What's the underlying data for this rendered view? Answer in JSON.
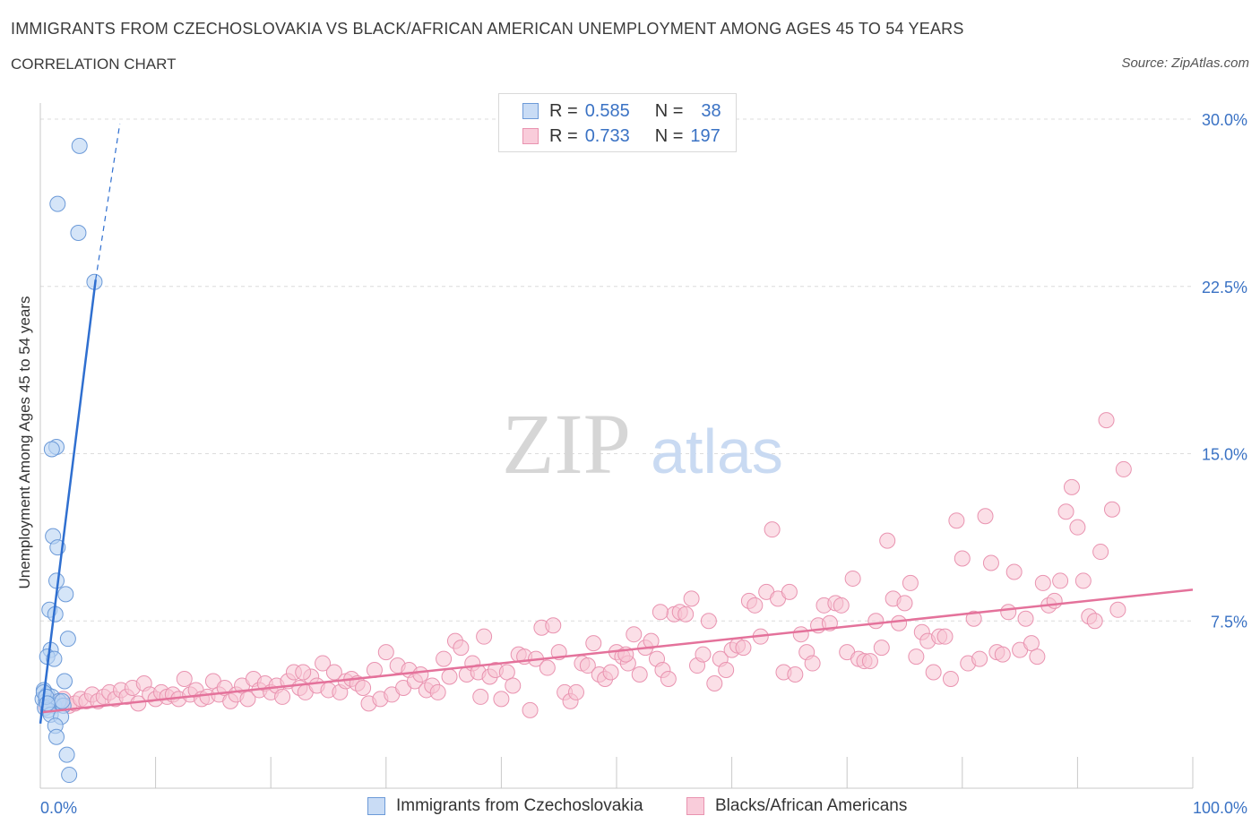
{
  "header": {
    "title": "IMMIGRANTS FROM CZECHOSLOVAKIA VS BLACK/AFRICAN AMERICAN UNEMPLOYMENT AMONG AGES 45 TO 54 YEARS",
    "subtitle": "CORRELATION CHART",
    "source": "Source: ZipAtlas.com"
  },
  "legend": {
    "rows": [
      {
        "r_label": "R =",
        "r_value": "0.585",
        "n_label": "N =",
        "n_value": "38"
      },
      {
        "r_label": "R =",
        "r_value": "0.733",
        "n_label": "N =",
        "n_value": "197"
      }
    ]
  },
  "colors": {
    "blue_fill": "#b9d3f3",
    "blue_stroke": "#6c9ad8",
    "blue_line": "#2f6fd0",
    "pink_fill": "#f7c4d4",
    "pink_stroke": "#e993b0",
    "pink_line": "#e4729b",
    "tick_label": "#3a72c4"
  },
  "chart_data": {
    "type": "scatter",
    "xlabel": "",
    "ylabel": "Unemployment Among Ages 45 to 54 years",
    "xlim": [
      0,
      100
    ],
    "ylim": [
      0,
      30
    ],
    "x_tick_labels": [
      "0.0%",
      "100.0%"
    ],
    "y_ticks": [
      7.5,
      15.0,
      22.5,
      30.0
    ],
    "y_tick_labels": [
      "7.5%",
      "15.0%",
      "22.5%",
      "30.0%"
    ],
    "grid": "horizontal dashed",
    "watermark": {
      "part1": "ZIP",
      "part2": "atlas"
    },
    "series": [
      {
        "name": "Immigrants from Czechoslovakia",
        "color": "#b9d3f3",
        "trend": {
          "x0": 0,
          "y0": 2.9,
          "x1": 4.8,
          "y1": 22.8,
          "x_ext": 6.9,
          "y_ext": 29.8
        },
        "points": [
          [
            3.4,
            28.8
          ],
          [
            1.5,
            26.2
          ],
          [
            3.3,
            24.9
          ],
          [
            4.7,
            22.7
          ],
          [
            1.4,
            15.3
          ],
          [
            1.0,
            15.2
          ],
          [
            1.1,
            11.3
          ],
          [
            1.5,
            10.8
          ],
          [
            1.4,
            9.3
          ],
          [
            2.2,
            8.7
          ],
          [
            0.8,
            8.0
          ],
          [
            1.3,
            7.8
          ],
          [
            2.4,
            6.7
          ],
          [
            0.9,
            6.2
          ],
          [
            0.6,
            5.9
          ],
          [
            1.2,
            5.8
          ],
          [
            2.1,
            4.8
          ],
          [
            0.3,
            4.4
          ],
          [
            0.6,
            4.2
          ],
          [
            0.2,
            4.0
          ],
          [
            0.5,
            3.9
          ],
          [
            0.8,
            3.8
          ],
          [
            1.0,
            4.1
          ],
          [
            1.2,
            3.7
          ],
          [
            0.4,
            3.6
          ],
          [
            1.6,
            3.9
          ],
          [
            2.0,
            3.7
          ],
          [
            0.7,
            3.5
          ],
          [
            0.9,
            3.3
          ],
          [
            1.8,
            3.2
          ],
          [
            1.3,
            2.8
          ],
          [
            1.4,
            2.3
          ],
          [
            2.3,
            1.5
          ],
          [
            2.5,
            0.6
          ],
          [
            0.3,
            4.3
          ],
          [
            0.5,
            4.1
          ],
          [
            1.9,
            3.9
          ],
          [
            0.6,
            3.8
          ]
        ]
      },
      {
        "name": "Blacks/African Americans",
        "color": "#f7c4d4",
        "trend": {
          "x0": 0,
          "y0": 3.4,
          "x1": 100,
          "y1": 8.9
        },
        "points": [
          [
            0.5,
            3.7
          ],
          [
            1.0,
            3.9
          ],
          [
            1.5,
            3.8
          ],
          [
            2.0,
            4.0
          ],
          [
            2.5,
            3.7
          ],
          [
            3.0,
            3.8
          ],
          [
            3.5,
            4.0
          ],
          [
            4.0,
            3.9
          ],
          [
            4.5,
            4.2
          ],
          [
            5.0,
            3.9
          ],
          [
            5.5,
            4.1
          ],
          [
            6.0,
            4.3
          ],
          [
            6.5,
            4.0
          ],
          [
            7.0,
            4.4
          ],
          [
            7.5,
            4.1
          ],
          [
            8.0,
            4.5
          ],
          [
            8.5,
            3.8
          ],
          [
            9.0,
            4.7
          ],
          [
            9.5,
            4.2
          ],
          [
            10.0,
            4.0
          ],
          [
            10.5,
            4.3
          ],
          [
            11.0,
            4.1
          ],
          [
            11.5,
            4.2
          ],
          [
            12.0,
            4.0
          ],
          [
            12.5,
            4.9
          ],
          [
            13.0,
            4.2
          ],
          [
            13.5,
            4.4
          ],
          [
            14.0,
            4.0
          ],
          [
            14.5,
            4.1
          ],
          [
            15.0,
            4.8
          ],
          [
            15.5,
            4.2
          ],
          [
            16.0,
            4.5
          ],
          [
            16.5,
            3.9
          ],
          [
            17.0,
            4.2
          ],
          [
            17.5,
            4.6
          ],
          [
            18.0,
            4.0
          ],
          [
            18.5,
            4.9
          ],
          [
            19.0,
            4.4
          ],
          [
            19.5,
            4.7
          ],
          [
            20.0,
            4.3
          ],
          [
            20.5,
            4.6
          ],
          [
            21.0,
            4.1
          ],
          [
            21.5,
            4.8
          ],
          [
            22.0,
            5.2
          ],
          [
            22.5,
            4.5
          ],
          [
            23.0,
            4.3
          ],
          [
            23.5,
            5.0
          ],
          [
            24.0,
            4.6
          ],
          [
            24.5,
            5.6
          ],
          [
            25.0,
            4.4
          ],
          [
            25.5,
            5.2
          ],
          [
            26.0,
            4.3
          ],
          [
            26.5,
            4.8
          ],
          [
            27.0,
            4.9
          ],
          [
            27.5,
            4.7
          ],
          [
            28.0,
            4.5
          ],
          [
            28.5,
            3.8
          ],
          [
            29.0,
            5.3
          ],
          [
            29.5,
            4.0
          ],
          [
            30.0,
            6.1
          ],
          [
            30.5,
            4.2
          ],
          [
            31.0,
            5.5
          ],
          [
            31.5,
            4.5
          ],
          [
            32.0,
            5.3
          ],
          [
            32.5,
            4.8
          ],
          [
            33.0,
            5.1
          ],
          [
            33.5,
            4.4
          ],
          [
            34.0,
            4.6
          ],
          [
            34.5,
            4.3
          ],
          [
            35.0,
            5.8
          ],
          [
            35.5,
            5.0
          ],
          [
            36.0,
            6.6
          ],
          [
            36.5,
            6.3
          ],
          [
            37.0,
            5.1
          ],
          [
            37.5,
            5.6
          ],
          [
            38.0,
            5.2
          ],
          [
            38.5,
            6.8
          ],
          [
            39.0,
            5.0
          ],
          [
            39.5,
            5.3
          ],
          [
            40.0,
            4.0
          ],
          [
            40.5,
            5.2
          ],
          [
            41.0,
            4.6
          ],
          [
            41.5,
            6.0
          ],
          [
            42.0,
            5.9
          ],
          [
            42.5,
            3.5
          ],
          [
            43.0,
            5.8
          ],
          [
            43.5,
            7.2
          ],
          [
            44.0,
            5.4
          ],
          [
            44.5,
            7.3
          ],
          [
            45.0,
            6.1
          ],
          [
            45.5,
            4.3
          ],
          [
            46.0,
            3.9
          ],
          [
            46.5,
            4.3
          ],
          [
            47.0,
            5.6
          ],
          [
            47.5,
            5.5
          ],
          [
            48.0,
            6.5
          ],
          [
            48.5,
            5.1
          ],
          [
            49.0,
            4.9
          ],
          [
            49.5,
            5.2
          ],
          [
            50.0,
            6.1
          ],
          [
            50.5,
            5.9
          ],
          [
            51.0,
            5.6
          ],
          [
            51.5,
            6.9
          ],
          [
            52.0,
            5.1
          ],
          [
            52.5,
            6.3
          ],
          [
            53.0,
            6.6
          ],
          [
            53.5,
            5.8
          ],
          [
            54.0,
            5.3
          ],
          [
            54.5,
            4.9
          ],
          [
            55.0,
            7.8
          ],
          [
            55.5,
            7.9
          ],
          [
            56.0,
            7.8
          ],
          [
            56.5,
            8.5
          ],
          [
            57.0,
            5.5
          ],
          [
            57.5,
            6.0
          ],
          [
            58.0,
            7.5
          ],
          [
            58.5,
            4.7
          ],
          [
            59.0,
            5.8
          ],
          [
            59.5,
            5.3
          ],
          [
            60.0,
            6.2
          ],
          [
            60.5,
            6.4
          ],
          [
            61.0,
            6.3
          ],
          [
            61.5,
            8.4
          ],
          [
            62.0,
            8.2
          ],
          [
            62.5,
            6.8
          ],
          [
            63.0,
            8.8
          ],
          [
            63.5,
            11.6
          ],
          [
            64.0,
            8.5
          ],
          [
            64.5,
            5.2
          ],
          [
            65.0,
            8.8
          ],
          [
            65.5,
            5.1
          ],
          [
            66.0,
            6.9
          ],
          [
            66.5,
            6.1
          ],
          [
            67.0,
            5.6
          ],
          [
            67.5,
            7.3
          ],
          [
            68.0,
            8.2
          ],
          [
            68.5,
            7.4
          ],
          [
            69.0,
            8.3
          ],
          [
            69.5,
            8.2
          ],
          [
            70.0,
            6.1
          ],
          [
            70.5,
            9.4
          ],
          [
            71.0,
            5.8
          ],
          [
            71.5,
            5.7
          ],
          [
            72.0,
            5.7
          ],
          [
            72.5,
            7.5
          ],
          [
            73.0,
            6.3
          ],
          [
            73.5,
            11.1
          ],
          [
            74.0,
            8.5
          ],
          [
            74.5,
            7.4
          ],
          [
            75.0,
            8.3
          ],
          [
            75.5,
            9.2
          ],
          [
            76.0,
            5.9
          ],
          [
            76.5,
            7.0
          ],
          [
            77.0,
            6.6
          ],
          [
            77.5,
            5.2
          ],
          [
            78.0,
            6.8
          ],
          [
            78.5,
            6.8
          ],
          [
            79.0,
            4.9
          ],
          [
            79.5,
            12.0
          ],
          [
            80.0,
            10.3
          ],
          [
            80.5,
            5.6
          ],
          [
            81.0,
            7.6
          ],
          [
            81.5,
            5.8
          ],
          [
            82.0,
            12.2
          ],
          [
            82.5,
            10.1
          ],
          [
            83.0,
            6.1
          ],
          [
            83.5,
            6.0
          ],
          [
            84.0,
            7.9
          ],
          [
            84.5,
            9.7
          ],
          [
            85.0,
            6.2
          ],
          [
            85.5,
            7.6
          ],
          [
            86.0,
            6.5
          ],
          [
            86.5,
            5.9
          ],
          [
            87.0,
            9.2
          ],
          [
            87.5,
            8.2
          ],
          [
            88.0,
            8.4
          ],
          [
            88.5,
            9.3
          ],
          [
            89.0,
            12.4
          ],
          [
            89.5,
            13.5
          ],
          [
            90.0,
            11.7
          ],
          [
            90.5,
            9.3
          ],
          [
            91.0,
            7.7
          ],
          [
            91.5,
            7.5
          ],
          [
            92.0,
            10.6
          ],
          [
            92.5,
            16.5
          ],
          [
            93.0,
            12.5
          ],
          [
            93.5,
            8.0
          ],
          [
            94.0,
            14.3
          ],
          [
            50.8,
            6.0
          ],
          [
            22.8,
            5.2
          ],
          [
            38.2,
            4.1
          ],
          [
            53.8,
            7.9
          ]
        ]
      }
    ]
  },
  "bottom_legend": {
    "items": [
      {
        "label": "Immigrants from Czechoslovakia"
      },
      {
        "label": "Blacks/African Americans"
      }
    ]
  }
}
